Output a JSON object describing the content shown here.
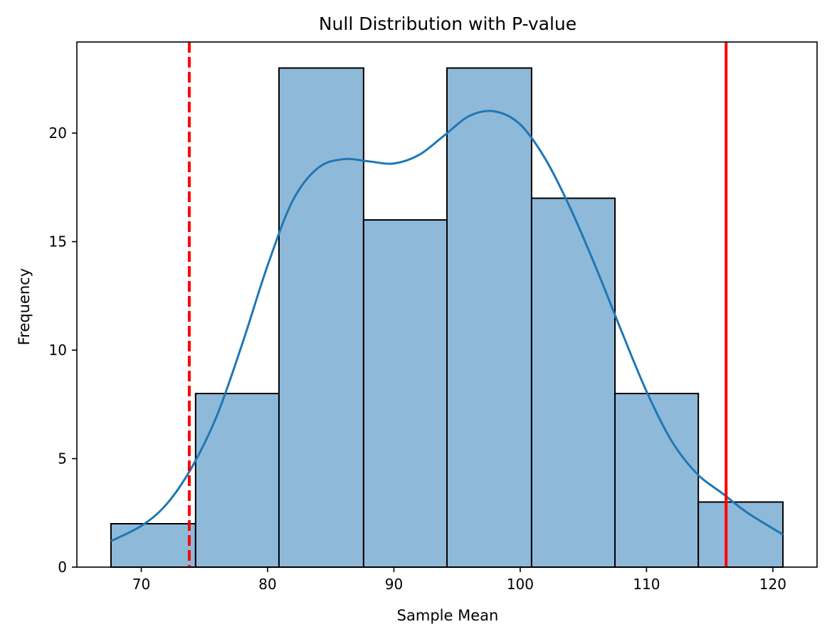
{
  "chart_data": {
    "type": "histogram",
    "title": "Null Distribution with P-value",
    "xlabel": "Sample Mean",
    "ylabel": "Frequency",
    "xlim": [
      64.9,
      123.5
    ],
    "ylim": [
      0,
      24.2
    ],
    "xticks": [
      70,
      80,
      90,
      100,
      110,
      120
    ],
    "yticks": [
      0,
      5,
      10,
      15,
      20
    ],
    "bins": [
      {
        "x0": 67.6,
        "x1": 74.3,
        "count": 2
      },
      {
        "x0": 74.3,
        "x1": 80.9,
        "count": 8
      },
      {
        "x0": 80.9,
        "x1": 87.6,
        "count": 23
      },
      {
        "x0": 87.6,
        "x1": 94.2,
        "count": 16
      },
      {
        "x0": 94.2,
        "x1": 100.9,
        "count": 23
      },
      {
        "x0": 100.9,
        "x1": 107.5,
        "count": 17
      },
      {
        "x0": 107.5,
        "x1": 114.1,
        "count": 8
      },
      {
        "x0": 114.1,
        "x1": 120.8,
        "count": 3
      }
    ],
    "kde": {
      "x": [
        67.6,
        70,
        72,
        74,
        76,
        78,
        80,
        82,
        84,
        86,
        88,
        90,
        92,
        94,
        96,
        98,
        100,
        102,
        104,
        106,
        108,
        110,
        112,
        114,
        116,
        118,
        120.8
      ],
      "y": [
        1.2,
        1.9,
        2.9,
        4.6,
        7.0,
        10.3,
        13.9,
        16.9,
        18.4,
        18.8,
        18.7,
        18.6,
        19.0,
        19.9,
        20.8,
        21.0,
        20.4,
        18.8,
        16.5,
        13.8,
        10.9,
        8.1,
        5.8,
        4.3,
        3.4,
        2.5,
        1.5
      ]
    },
    "vlines": [
      {
        "x": 73.8,
        "style": "dashed",
        "color": "#ff0000"
      },
      {
        "x": 116.3,
        "style": "solid",
        "color": "#ff0000"
      }
    ],
    "colors": {
      "bar_fill": "#8fb9d9",
      "bar_edge": "#000000",
      "kde_line": "#1f77b4"
    },
    "grid": false,
    "legend": "none"
  }
}
